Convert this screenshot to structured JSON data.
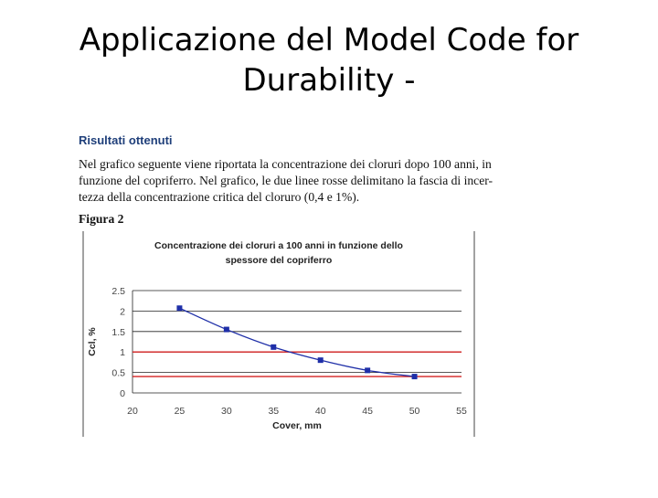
{
  "slide": {
    "title_line1": "Applicazione del Model Code for",
    "title_line2": "Durability -"
  },
  "document": {
    "section_heading": "Risultati ottenuti",
    "paragraph_lines": [
      "Nel grafico seguente viene riportata la concentrazione dei cloruri dopo 100 anni, in",
      "funzione del copriferro. Nel grafico, le due linee rosse delimitano la fascia di incer-",
      "tezza della concentrazione critica del cloruro (0,4 e 1%)."
    ],
    "figure_label": "Figura 2"
  },
  "chart_data": {
    "type": "scatter",
    "title_line1": "Concentrazione dei cloruri a 100 anni in funzione dello",
    "title_line2": "spessore del copriferro",
    "xlabel": "Cover, mm",
    "ylabel": "Ccl, %",
    "xlim": [
      20,
      55
    ],
    "ylim": [
      0,
      2.5
    ],
    "x_ticks": [
      "20",
      "25",
      "30",
      "35",
      "40",
      "45",
      "50",
      "55"
    ],
    "y_ticks": [
      "0",
      "0.5",
      "1",
      "1.5",
      "2",
      "2.5"
    ],
    "grid": true,
    "points": [
      {
        "x": 25,
        "y": 2.07
      },
      {
        "x": 30,
        "y": 1.55
      },
      {
        "x": 35,
        "y": 1.12
      },
      {
        "x": 40,
        "y": 0.8
      },
      {
        "x": 45,
        "y": 0.55
      },
      {
        "x": 50,
        "y": 0.4
      }
    ],
    "reference_lines": [
      {
        "y": 1.0,
        "color": "#d42020"
      },
      {
        "y": 0.4,
        "color": "#d42020"
      }
    ],
    "marker_color": "#1f2fa8",
    "line_color": "#1f2fa8"
  }
}
